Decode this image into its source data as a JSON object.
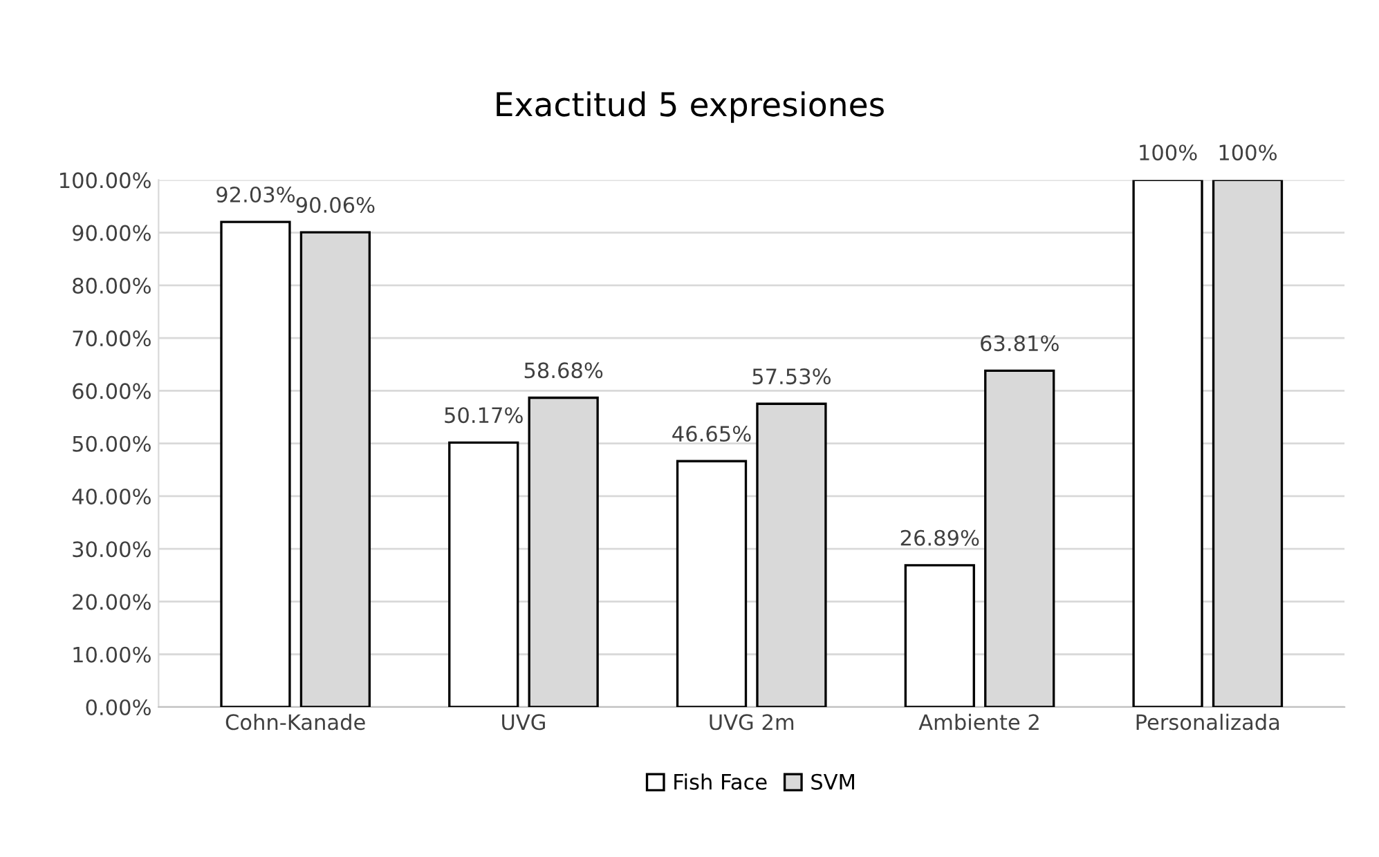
{
  "chart_data": {
    "type": "bar",
    "title": "Exactitud 5 expresiones",
    "categories": [
      "Cohn-Kanade",
      "UVG",
      "UVG 2m",
      "Ambiente 2",
      "Personalizada"
    ],
    "series": [
      {
        "name": "Fish Face",
        "color": "#ffffff",
        "values": [
          92.03,
          50.17,
          46.65,
          26.89,
          100
        ],
        "value_labels": [
          "92.03%",
          "50.17%",
          "46.65%",
          "26.89%",
          "100%"
        ]
      },
      {
        "name": "SVM",
        "color": "#d9d9d9",
        "values": [
          90.06,
          58.68,
          57.53,
          63.81,
          100
        ],
        "value_labels": [
          "90.06%",
          "58.68%",
          "57.53%",
          "63.81%",
          "100%"
        ]
      }
    ],
    "ylim": [
      0,
      100
    ],
    "yticks": [
      {
        "value": 0,
        "label": "0.00%"
      },
      {
        "value": 10,
        "label": "10.00%"
      },
      {
        "value": 20,
        "label": "20.00%"
      },
      {
        "value": 30,
        "label": "30.00%"
      },
      {
        "value": 40,
        "label": "40.00%"
      },
      {
        "value": 50,
        "label": "50.00%"
      },
      {
        "value": 60,
        "label": "60.00%"
      },
      {
        "value": 70,
        "label": "70.00%"
      },
      {
        "value": 80,
        "label": "80.00%"
      },
      {
        "value": 90,
        "label": "90.00%"
      },
      {
        "value": 100,
        "label": "100.00%"
      }
    ],
    "grid": "y",
    "legend": "bottom"
  }
}
